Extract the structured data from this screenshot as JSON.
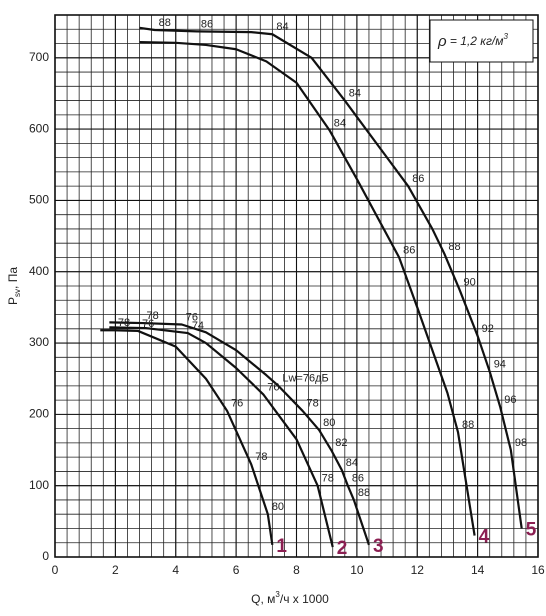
{
  "chart_data": {
    "type": "line",
    "x_label": {
      "main": "Q, м",
      "sup": "3",
      "rest": "/ч x 1000"
    },
    "y_label": {
      "main": "P",
      "sub": "sv",
      "rest": ", Па"
    },
    "annotation": {
      "symbol": "ρ",
      "text": " = 1,2 кг/м",
      "sup": "3"
    },
    "xlim": [
      0,
      16
    ],
    "xticks": [
      0,
      2,
      4,
      6,
      8,
      10,
      12,
      14,
      16
    ],
    "ylim": [
      0,
      760
    ],
    "yticks": [
      0,
      100,
      200,
      300,
      400,
      500,
      600,
      700
    ],
    "grid": true,
    "minor_grid_step": {
      "x": 0.4,
      "y": 20
    },
    "series": [
      {
        "name": "1",
        "color": "#111111",
        "label_color": "#8b1f52",
        "x": [
          1.5,
          1.95,
          2.75,
          4,
          5,
          5.7,
          6.5,
          7.05,
          7.2
        ],
        "values": [
          318,
          318,
          317,
          295,
          250,
          205,
          130,
          60,
          17
        ],
        "point_labels": [
          null,
          78,
          76,
          null,
          null,
          76,
          78,
          80,
          null
        ]
      },
      {
        "name": "2",
        "color": "#111111",
        "label_color": "#8b1f52",
        "x": [
          1.8,
          3,
          4.4,
          5,
          6,
          6.9,
          8,
          8.7,
          9.2
        ],
        "values": [
          322,
          321,
          314,
          300,
          265,
          228,
          165,
          100,
          14
        ],
        "point_labels": [
          null,
          null,
          74,
          null,
          null,
          76,
          null,
          78,
          null
        ]
      },
      {
        "name": "3",
        "color": "#111111",
        "label_color": "#8b1f52",
        "x": [
          1.8,
          2.9,
          4.2,
          5,
          6,
          7,
          7.4,
          8.2,
          8.75,
          9.15,
          9.5,
          9.7,
          9.9,
          10.4
        ],
        "values": [
          329,
          328,
          326,
          315,
          290,
          255,
          240,
          205,
          178,
          150,
          122,
          100,
          80,
          17
        ],
        "point_labels": [
          null,
          78,
          76,
          null,
          null,
          null,
          "Lw=76дБ",
          78,
          80,
          82,
          84,
          86,
          88,
          null
        ]
      },
      {
        "name": "4",
        "color": "#111111",
        "label_color": "#8b1f52",
        "x": [
          2.8,
          4,
          5,
          6,
          7,
          8,
          9.1,
          10,
          11.4,
          12,
          13,
          13.35,
          13.9
        ],
        "values": [
          722,
          721,
          718,
          712,
          695,
          665,
          598,
          530,
          420,
          350,
          230,
          175,
          30
        ],
        "point_labels": [
          null,
          null,
          null,
          null,
          null,
          null,
          84,
          null,
          86,
          null,
          null,
          88,
          null
        ]
      },
      {
        "name": "5",
        "color": "#111111",
        "label_color": "#8b1f52",
        "x": [
          2.8,
          3.3,
          4.7,
          6.5,
          7.2,
          8.5,
          9.6,
          11,
          11.7,
          12.5,
          12.9,
          13.4,
          14,
          14.4,
          14.75,
          15.1,
          15.46
        ],
        "values": [
          742,
          739,
          737,
          736,
          733,
          700,
          640,
          560,
          520,
          460,
          425,
          375,
          310,
          260,
          210,
          150,
          40
        ],
        "point_labels": [
          null,
          88,
          86,
          null,
          84,
          null,
          84,
          null,
          86,
          null,
          88,
          90,
          92,
          94,
          96,
          98,
          null
        ]
      }
    ]
  }
}
